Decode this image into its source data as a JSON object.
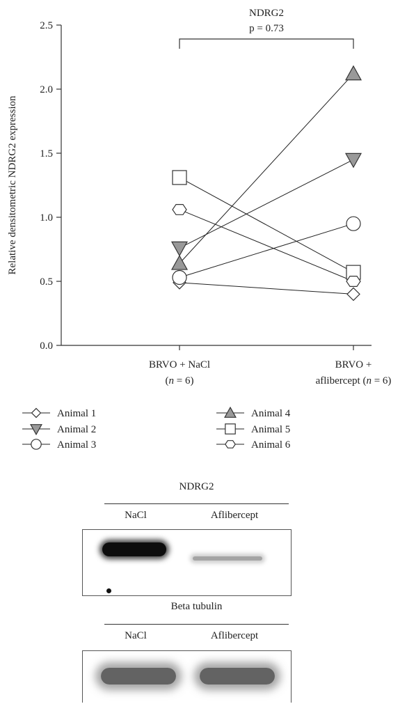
{
  "chart_data": {
    "type": "scatter",
    "title": "NDRG2",
    "annotation": "p = 0.73",
    "ylabel": "Relative densitometric NDRG2 expression",
    "ylim": [
      0,
      2.5
    ],
    "yticks": [
      "0.0",
      "0.5",
      "1.0",
      "1.5",
      "2.0",
      "2.5"
    ],
    "groups": [
      {
        "line1": "BRVO + NaCl",
        "line2_pre": "(",
        "n": "n",
        "line2_post": " = 6)"
      },
      {
        "line1": "BRVO +",
        "line2_pre": "aflibercept (",
        "n": "n",
        "line2_post": " = 6)"
      }
    ],
    "series": [
      {
        "name": "Animal 1",
        "marker": "diamond",
        "fill": "#ffffff",
        "values": [
          0.49,
          0.4
        ]
      },
      {
        "name": "Animal 2",
        "marker": "triangle-down",
        "fill": "#999999",
        "values": [
          0.76,
          1.45
        ]
      },
      {
        "name": "Animal 3",
        "marker": "circle",
        "fill": "#ffffff",
        "values": [
          0.53,
          0.95
        ]
      },
      {
        "name": "Animal 4",
        "marker": "triangle-up",
        "fill": "#999999",
        "values": [
          0.64,
          2.12
        ]
      },
      {
        "name": "Animal 5",
        "marker": "square",
        "fill": "#ffffff",
        "values": [
          1.31,
          0.57
        ]
      },
      {
        "name": "Animal 6",
        "marker": "hexagon",
        "fill": "#ffffff",
        "values": [
          1.06,
          0.5
        ]
      }
    ],
    "grid": false,
    "legend": "bottom"
  },
  "blots": [
    {
      "title": "NDRG2",
      "lanes": [
        "NaCl",
        "Aflibercept"
      ],
      "intensity": [
        0.95,
        0.12
      ]
    },
    {
      "title": "Beta tubulin",
      "lanes": [
        "NaCl",
        "Aflibercept"
      ],
      "intensity": [
        0.6,
        0.6
      ]
    }
  ],
  "colors": {
    "axis": "#333333",
    "gray_fill": "#999999",
    "band": "#111111"
  }
}
